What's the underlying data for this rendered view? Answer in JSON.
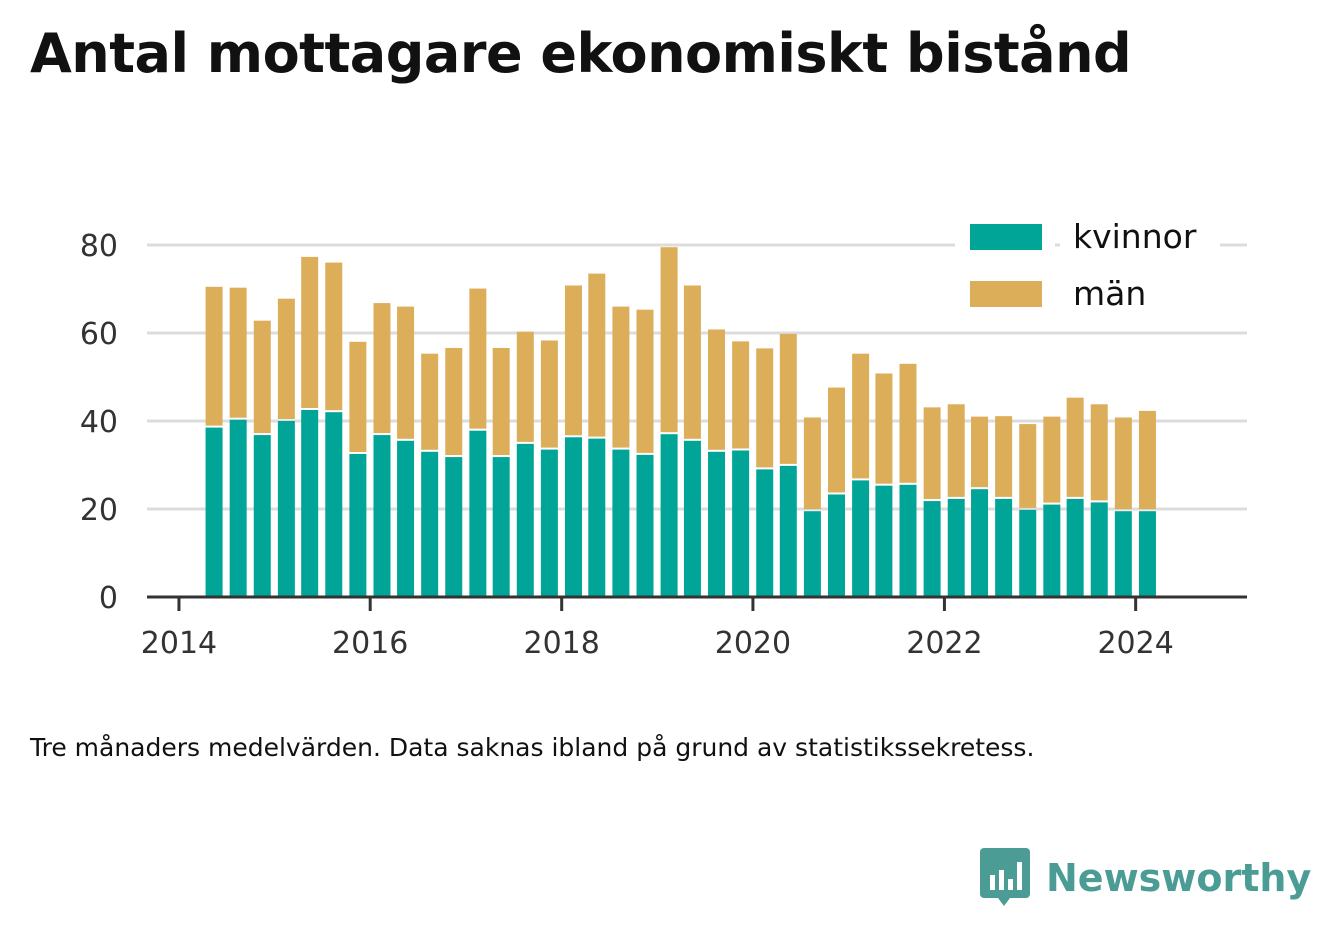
{
  "title": "Antal mottagare ekonomiskt bistånd",
  "note": "Tre månaders medelvärden. Data saknas ibland på grund av statistikssekretess.",
  "brand": {
    "name": "Newsworthy",
    "color": "#4a9c94"
  },
  "colors": {
    "kvinnor": "#00a598",
    "man": "#dcae5a",
    "axis": "#333333",
    "grid": "#dcdcdc",
    "text": "#333333"
  },
  "chart_data": {
    "type": "bar",
    "stacked": true,
    "x": [
      "2014-05-15",
      "2014-08-15",
      "2014-11-15",
      "2015-02-15",
      "2015-05-15",
      "2015-08-15",
      "2015-11-15",
      "2016-02-15",
      "2016-05-15",
      "2016-08-15",
      "2016-11-15",
      "2017-02-15",
      "2017-05-15",
      "2017-08-15",
      "2017-11-15",
      "2018-02-15",
      "2018-05-15",
      "2018-08-15",
      "2018-11-15",
      "2019-02-15",
      "2019-05-15",
      "2019-08-15",
      "2019-11-15",
      "2020-02-15",
      "2020-05-15",
      "2020-08-15",
      "2020-11-15",
      "2021-02-15",
      "2021-05-15",
      "2021-08-15",
      "2021-11-15",
      "2022-02-15",
      "2022-05-15",
      "2022-08-15",
      "2022-11-15",
      "2023-02-15",
      "2023-05-15",
      "2023-08-15",
      "2023-11-15",
      "2024-02-15"
    ],
    "series": [
      {
        "name": "kvinnor",
        "values": [
          38.5,
          40.3,
          36.8,
          40.0,
          42.5,
          42.0,
          32.5,
          36.8,
          35.5,
          33.0,
          31.8,
          37.8,
          31.8,
          34.8,
          33.5,
          36.3,
          36.0,
          33.5,
          32.3,
          37.0,
          35.5,
          33.0,
          33.3,
          29.0,
          29.8,
          19.5,
          23.3,
          26.5,
          25.3,
          25.5,
          21.8,
          22.3,
          24.5,
          22.3,
          19.8,
          21.0,
          22.3,
          21.5,
          19.5,
          19.5
        ]
      },
      {
        "name": "män",
        "values": [
          32.0,
          30.0,
          26.0,
          27.8,
          34.8,
          34.0,
          25.5,
          30.0,
          30.5,
          22.3,
          24.8,
          32.3,
          24.8,
          25.5,
          24.8,
          34.5,
          37.5,
          32.5,
          33.0,
          42.5,
          35.3,
          27.8,
          24.8,
          27.5,
          30.0,
          21.3,
          24.3,
          28.8,
          25.5,
          27.5,
          21.3,
          21.5,
          16.5,
          18.8,
          19.5,
          20.0,
          23.0,
          22.3,
          21.3,
          22.8
        ]
      }
    ],
    "ylim": [
      0,
      90
    ],
    "yticks": [
      "0",
      "20",
      "40",
      "60",
      "80"
    ],
    "xticks": [
      "2014",
      "2016",
      "2018",
      "2020",
      "2022",
      "2024"
    ],
    "xlim": [
      "2013-09-01",
      "2025-03-01"
    ],
    "grid": "horizontal",
    "legend": "top-right"
  }
}
